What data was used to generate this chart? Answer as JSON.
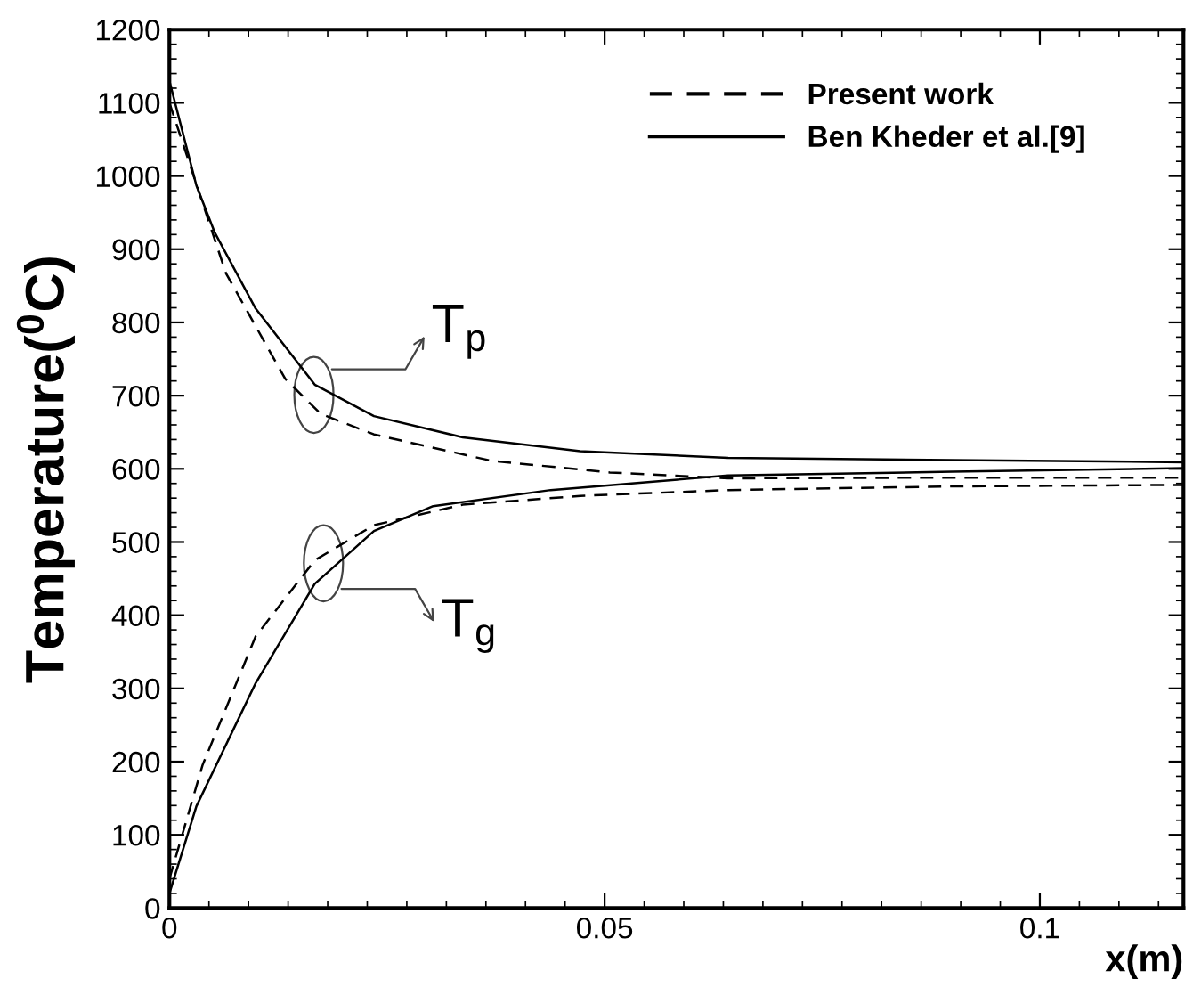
{
  "chart_data": {
    "type": "line",
    "xlabel": "x(m)",
    "ylabel": "Temperature($^{0}$C)",
    "xlim": [
      0,
      0.1165
    ],
    "xticks": [
      0,
      0.05,
      0.1
    ],
    "ylim": [
      0,
      1200
    ],
    "yticks": [
      0,
      100,
      200,
      300,
      400,
      500,
      600,
      700,
      800,
      900,
      1000,
      1100,
      1200
    ],
    "grid": false,
    "legend": "top right",
    "marker": "none",
    "series": [
      {
        "name": "Present work",
        "color": "#000000",
        "line_style": "dashed",
        "x": [
          0,
          0.0065,
          0.0133,
          0.0174,
          0.0235,
          0.037,
          0.0506,
          0.0642,
          0.09,
          0.1165
        ],
        "values": [
          1100,
          867,
          723,
          675,
          647,
          611,
          595,
          587,
          588,
          588
        ]
      },
      {
        "name": "Ben Kheder et al.[9]",
        "color": "#000000",
        "line_style": "solid",
        "x": [
          0,
          0.0031,
          0.0052,
          0.0099,
          0.0167,
          0.0235,
          0.0337,
          0.0472,
          0.0642,
          0.09,
          0.1165
        ],
        "values": [
          1130,
          987,
          923,
          819,
          715,
          672,
          643,
          624,
          615,
          612,
          609
        ]
      },
      {
        "color": "#000000",
        "line_style": "dashed",
        "x": [
          0,
          0.0038,
          0.0099,
          0.0167,
          0.0235,
          0.0337,
          0.0472,
          0.0642,
          0.09,
          0.1165
        ],
        "values": [
          40,
          195,
          371,
          475,
          523,
          551,
          563,
          571,
          576,
          578
        ]
      },
      {
        "color": "#000000",
        "line_style": "solid",
        "x": [
          0,
          0.0031,
          0.0099,
          0.0167,
          0.0235,
          0.0303,
          0.0438,
          0.0642,
          0.09,
          0.1165
        ],
        "values": [
          20,
          139,
          307,
          443,
          515,
          549,
          571,
          591,
          596,
          601
        ]
      }
    ],
    "annotations": [
      {
        "text": "T$_{p}$",
        "x": 0.0166,
        "y": 701
      },
      {
        "text": "T$_{g}$",
        "x": 0.0177,
        "y": 471
      }
    ]
  }
}
